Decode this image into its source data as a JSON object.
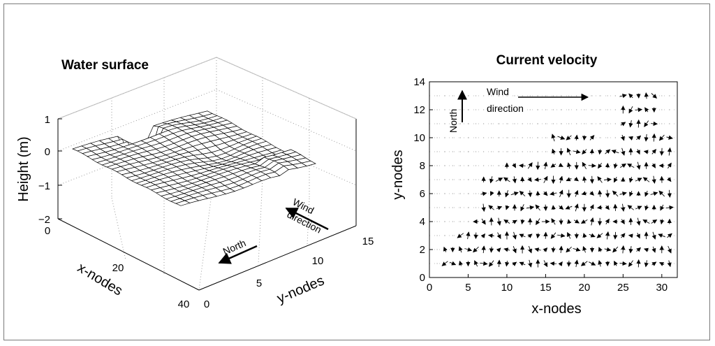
{
  "chart_data": [
    {
      "type": "surface",
      "title": "Water surface",
      "xlabel": "x-nodes",
      "ylabel": "y-nodes",
      "zlabel": "Height (m)",
      "x_ticks": [
        "0",
        "20",
        "40"
      ],
      "y_ticks": [
        "0",
        "5",
        "10",
        "15"
      ],
      "z_ticks": [
        "1",
        "0",
        "−1",
        "−2"
      ],
      "xlim": [
        0,
        40
      ],
      "ylim": [
        0,
        15
      ],
      "zlim": [
        -2,
        1
      ],
      "annotations": [
        {
          "text_lines": [
            "Wind",
            "direction"
          ]
        },
        {
          "text_lines": [
            "North"
          ]
        }
      ],
      "description_values": {
        "typical_height_m": 0.0,
        "min_height_m": -1.1,
        "max_height_m": 0.3
      }
    },
    {
      "type": "quiver",
      "title": "Current velocity",
      "xlabel": "x-nodes",
      "ylabel": "y-nodes",
      "xlim": [
        0,
        32
      ],
      "ylim": [
        0,
        14
      ],
      "x_ticks": [
        "0",
        "5",
        "10",
        "15",
        "20",
        "25",
        "30"
      ],
      "y_ticks": [
        "0",
        "2",
        "4",
        "6",
        "8",
        "10",
        "12",
        "14"
      ],
      "annotations": [
        {
          "text_lines": [
            "Wind",
            "direction"
          ]
        },
        {
          "text_lines": [
            "North"
          ]
        }
      ],
      "grid": "dotted"
    }
  ]
}
